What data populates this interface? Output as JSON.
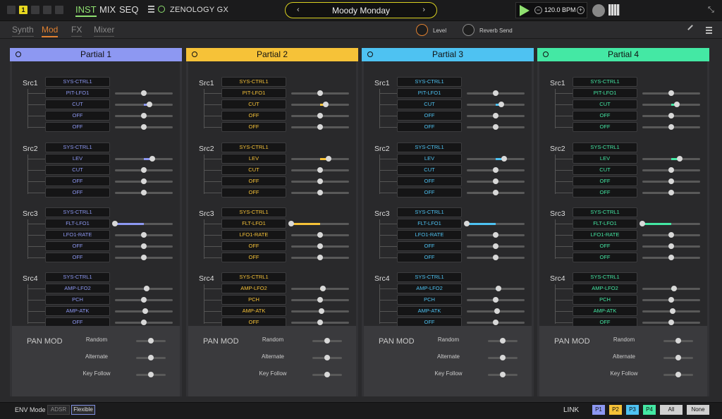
{
  "topbar": {
    "slot_number": "1",
    "nav": [
      "INST",
      "MIX",
      "SEQ"
    ],
    "nav_active": 0,
    "app_name": "ZENOLOGY GX",
    "patch_prev": "‹",
    "patch_next": "›",
    "patch_name": "Moody Monday",
    "bpm_minus": "−",
    "bpm": "120.0 BPM",
    "bpm_plus": "+",
    "collapse_icon": "⤡"
  },
  "subtabs": [
    "Synth",
    "Mod",
    "FX",
    "Mixer"
  ],
  "subtab_active": 1,
  "knobs": {
    "level": "Level",
    "reverb": "Reverb Send"
  },
  "partials": [
    {
      "title": "Partial 1",
      "color": "#8d98f2"
    },
    {
      "title": "Partial 2",
      "color": "#f6c238"
    },
    {
      "title": "Partial 3",
      "color": "#4ec2f2"
    },
    {
      "title": "Partial 4",
      "color": "#44e8a4"
    }
  ],
  "sources": [
    {
      "name": "Src1",
      "ctrl": "SYS-CTRL1",
      "rows": [
        {
          "dest": "PIT-LFO1",
          "value": 0
        },
        {
          "dest": "CUT",
          "value": 0.2
        },
        {
          "dest": "OFF",
          "value": 0
        },
        {
          "dest": "OFF",
          "value": 0
        }
      ]
    },
    {
      "name": "Src2",
      "ctrl": "SYS-CTRL1",
      "rows": [
        {
          "dest": "LEV",
          "value": 0.3
        },
        {
          "dest": "CUT",
          "value": 0
        },
        {
          "dest": "OFF",
          "value": 0
        },
        {
          "dest": "OFF",
          "value": 0
        }
      ]
    },
    {
      "name": "Src3",
      "ctrl": "SYS-CTRL1",
      "rows": [
        {
          "dest": "FLT-LFO1",
          "value": -1
        },
        {
          "dest": "LFO1-RATE",
          "value": 0
        },
        {
          "dest": "OFF",
          "value": 0
        },
        {
          "dest": "OFF",
          "value": 0
        }
      ]
    },
    {
      "name": "Src4",
      "ctrl": "SYS-CTRL1",
      "rows": [
        {
          "dest": "AMP-LFO2",
          "value": 0.1
        },
        {
          "dest": "PCH",
          "value": 0
        },
        {
          "dest": "AMP-ATK",
          "value": 0.05
        },
        {
          "dest": "OFF",
          "value": 0
        }
      ]
    }
  ],
  "pan_mod": {
    "title": "PAN MOD",
    "rows": [
      {
        "label": "Random",
        "value": 0
      },
      {
        "label": "Alternate",
        "value": 0
      },
      {
        "label": "Key Follow",
        "value": 0
      }
    ]
  },
  "bottom": {
    "env_label": "ENV Mode",
    "env_options": [
      "ADSR",
      "Flexible"
    ],
    "env_selected": 1,
    "link_label": "LINK",
    "link_buttons": [
      "P1",
      "P2",
      "P3",
      "P4"
    ],
    "all_label": "All",
    "none_label": "None"
  }
}
